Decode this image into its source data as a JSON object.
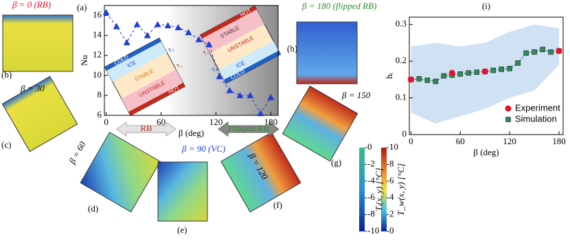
{
  "chart_data": [
    {
      "type": "line",
      "label": "(a)",
      "xlabel": "β (deg)",
      "ylabel": "Nu",
      "x": [
        0,
        11.25,
        22.5,
        33.75,
        45,
        56.25,
        67.5,
        78.75,
        90,
        101.25,
        112.5,
        123.75,
        135,
        146.25,
        157.5,
        168.75,
        180
      ],
      "values": [
        16.3,
        14.9,
        13.3,
        15.1,
        14.0,
        15.1,
        15.0,
        14.8,
        14.3,
        13.6,
        13.1,
        9.9,
        8.5,
        8.0,
        8.0,
        6.2,
        7.8
      ],
      "color": "#1f3fd6",
      "marker": "triangle",
      "line_style": "dashed",
      "xlim": [
        -2,
        188
      ],
      "ylim": [
        6,
        17
      ],
      "xticks": [
        0,
        60,
        120,
        180
      ],
      "yticks": [
        6,
        8,
        10,
        12,
        14,
        16
      ]
    },
    {
      "type": "scatter",
      "label": "(i)",
      "xlabel": "β (deg)",
      "ylabel": "hᵢ",
      "band": {
        "x": [
          0,
          30,
          60,
          90,
          120,
          150,
          180
        ],
        "upper": [
          0.24,
          0.25,
          0.24,
          0.25,
          0.28,
          0.3,
          0.29
        ],
        "lower": [
          0.06,
          0.03,
          0.05,
          0.07,
          0.1,
          0.12,
          0.19
        ],
        "color": "#cfe2f3"
      },
      "series": [
        {
          "name": "Simulation",
          "color": "#2e8b57",
          "marker": "square",
          "x": [
            0,
            10,
            20,
            30,
            40,
            50,
            60,
            70,
            80,
            90,
            100,
            110,
            120,
            130,
            140,
            150,
            160,
            170,
            180
          ],
          "values": [
            0.15,
            0.152,
            0.148,
            0.145,
            0.16,
            0.162,
            0.165,
            0.168,
            0.17,
            0.172,
            0.175,
            0.178,
            0.18,
            0.195,
            0.222,
            0.225,
            0.232,
            0.225,
            0.228
          ]
        },
        {
          "name": "Experiment",
          "color": "#e8102a",
          "marker": "circle",
          "x": [
            0,
            50,
            90,
            180
          ],
          "values": [
            0.15,
            0.168,
            0.172,
            0.228
          ]
        }
      ],
      "xlim": [
        -2,
        185
      ],
      "ylim": [
        0,
        0.32
      ],
      "xticks": [
        0,
        60,
        120,
        180
      ],
      "yticks": [
        0,
        0.1,
        0.2,
        0.3
      ],
      "legend": "lower-right"
    }
  ],
  "panels": [
    {
      "label": "(b)",
      "title": "β = 0 (RB)"
    },
    {
      "label": "(c)",
      "title": "β = 30"
    },
    {
      "label": "(d)",
      "title": "β = 60"
    },
    {
      "label": "(e)",
      "title": "β = 90 (VC)"
    },
    {
      "label": "(f)",
      "title": "β = 120"
    },
    {
      "label": "(g)",
      "title": "β = 150"
    },
    {
      "label": "(h)",
      "title": "β = 180 (flipped RB)"
    }
  ],
  "colorbars": [
    {
      "label": "Tᵢ(x, y) [°C]",
      "lim": [
        -10,
        0
      ],
      "ticks": [
        0,
        -2,
        -4,
        -6,
        -8,
        -10
      ]
    },
    {
      "label": "T_w(x, y) [°C]",
      "lim": [
        0,
        10
      ],
      "ticks": [
        10,
        8,
        6,
        4,
        2,
        0
      ]
    }
  ],
  "arrows": {
    "left": "RB",
    "right": "Flipped RB"
  },
  "insets": {
    "cold": "COLD",
    "ice": "ICE",
    "stable": "STABLE",
    "unstable": "UNSTABLE",
    "hot": "HOT",
    "t0": "T₀",
    "tc": "T꜀"
  }
}
